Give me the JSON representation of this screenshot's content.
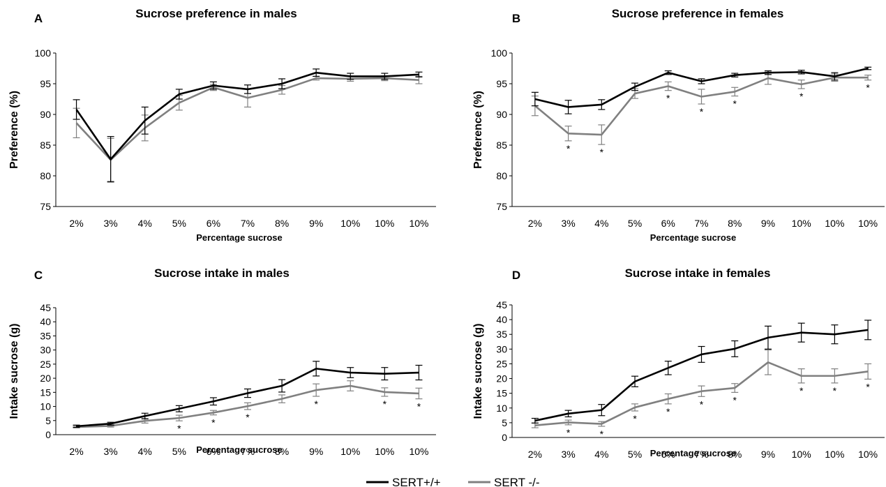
{
  "legend": {
    "series_a": "SERT+/+",
    "series_b": "SERT -/-"
  },
  "colors": {
    "sert_wt": "#000000",
    "sert_ko": "#808080"
  },
  "chart_data": [
    {
      "panel": "A",
      "type": "line",
      "title": "Sucrose preference in males",
      "xlabel": "Percentage sucrose",
      "ylabel": "Preference (%)",
      "categories": [
        "2%",
        "3%",
        "4%",
        "5%",
        "6%",
        "7%",
        "8%",
        "9%",
        "10%",
        "10%",
        "10%"
      ],
      "ylim": [
        75,
        100
      ],
      "yticks": [
        75,
        80,
        85,
        90,
        95,
        100
      ],
      "grid": false,
      "series": [
        {
          "name": "SERT+/+",
          "color": "#000000",
          "values": [
            90.8,
            82.7,
            89.0,
            93.3,
            94.7,
            94.1,
            95.0,
            96.8,
            96.2,
            96.2,
            96.5
          ],
          "errors": [
            1.6,
            3.7,
            2.2,
            0.8,
            0.6,
            0.7,
            0.8,
            0.6,
            0.5,
            0.5,
            0.4
          ],
          "significant": [
            false,
            false,
            false,
            false,
            false,
            false,
            false,
            false,
            false,
            false,
            false
          ]
        },
        {
          "name": "SERT -/-",
          "color": "#808080",
          "values": [
            88.6,
            82.6,
            87.8,
            91.9,
            94.4,
            92.7,
            94.0,
            95.9,
            95.8,
            95.9,
            95.6
          ],
          "errors": [
            2.4,
            3.5,
            2.1,
            1.2,
            0.5,
            1.5,
            0.7,
            0.3,
            0.4,
            0.4,
            0.6
          ],
          "significant": [
            false,
            false,
            false,
            false,
            false,
            false,
            false,
            false,
            false,
            false,
            false
          ]
        }
      ]
    },
    {
      "panel": "B",
      "type": "line",
      "title": "Sucrose preference in females",
      "xlabel": "Percentage sucrose",
      "ylabel": "Preference (%)",
      "categories": [
        "2%",
        "3%",
        "4%",
        "5%",
        "6%",
        "7%",
        "8%",
        "9%",
        "10%",
        "10%",
        "10%"
      ],
      "ylim": [
        75,
        100
      ],
      "yticks": [
        75,
        80,
        85,
        90,
        95,
        100
      ],
      "grid": false,
      "series": [
        {
          "name": "SERT+/+",
          "color": "#000000",
          "values": [
            92.5,
            91.2,
            91.6,
            94.5,
            96.8,
            95.4,
            96.4,
            96.8,
            96.9,
            96.2,
            97.5
          ],
          "errors": [
            1.1,
            1.1,
            0.8,
            0.6,
            0.3,
            0.4,
            0.3,
            0.3,
            0.3,
            0.6,
            0.2
          ],
          "significant": [
            false,
            false,
            false,
            false,
            false,
            false,
            false,
            false,
            false,
            false,
            false
          ]
        },
        {
          "name": "SERT -/-",
          "color": "#808080",
          "values": [
            91.4,
            86.9,
            86.7,
            93.4,
            94.6,
            92.9,
            93.7,
            95.9,
            94.9,
            96.0,
            96.0
          ],
          "errors": [
            1.6,
            1.2,
            1.6,
            0.8,
            0.7,
            1.2,
            0.7,
            1.0,
            0.7,
            0.6,
            0.4
          ],
          "significant": [
            false,
            true,
            true,
            false,
            true,
            true,
            true,
            false,
            true,
            false,
            true
          ]
        }
      ]
    },
    {
      "panel": "C",
      "type": "line",
      "title": "Sucrose intake in males",
      "xlabel": "Percentage sucrose",
      "ylabel": "Intake sucrose (g)",
      "categories": [
        "2%",
        "3%",
        "4%",
        "5%",
        "6%",
        "7%",
        "8%",
        "9%",
        "10%",
        "10%",
        "10%"
      ],
      "ylim": [
        0,
        45
      ],
      "yticks": [
        0,
        5,
        10,
        15,
        20,
        25,
        30,
        35,
        40,
        45
      ],
      "grid": false,
      "series": [
        {
          "name": "SERT+/+",
          "color": "#000000",
          "values": [
            3.0,
            3.9,
            6.6,
            9.2,
            11.8,
            14.7,
            17.3,
            23.4,
            22.0,
            21.6,
            22.0
          ],
          "errors": [
            0.4,
            0.5,
            1.0,
            1.1,
            1.3,
            1.5,
            2.2,
            2.6,
            1.8,
            2.2,
            2.6
          ],
          "significant": [
            false,
            false,
            false,
            false,
            false,
            false,
            false,
            false,
            false,
            false,
            false
          ]
        },
        {
          "name": "SERT -/-",
          "color": "#808080",
          "values": [
            2.7,
            3.1,
            4.9,
            5.9,
            7.8,
            10.1,
            12.7,
            15.8,
            17.3,
            15.1,
            14.6
          ],
          "errors": [
            0.3,
            0.4,
            0.8,
            1.0,
            0.8,
            1.2,
            1.4,
            2.2,
            1.8,
            1.5,
            1.9
          ],
          "significant": [
            false,
            false,
            false,
            true,
            true,
            true,
            false,
            true,
            false,
            true,
            true
          ]
        }
      ]
    },
    {
      "panel": "D",
      "type": "line",
      "title": "Sucrose intake in females",
      "xlabel": "Percentage sucrose",
      "ylabel": "Intake sucrose (g)",
      "categories": [
        "2%",
        "3%",
        "4%",
        "5%",
        "6%",
        "7%",
        "8%",
        "9%",
        "10%",
        "10%",
        "10%"
      ],
      "ylim": [
        0,
        45
      ],
      "yticks": [
        0,
        5,
        10,
        15,
        20,
        25,
        30,
        35,
        40,
        45
      ],
      "grid": false,
      "series": [
        {
          "name": "SERT+/+",
          "color": "#000000",
          "values": [
            5.7,
            8.1,
            9.3,
            19.0,
            23.6,
            28.2,
            30.1,
            33.9,
            35.6,
            35.0,
            36.5
          ],
          "errors": [
            0.8,
            1.1,
            1.9,
            1.8,
            2.3,
            2.7,
            2.7,
            3.9,
            3.2,
            3.2,
            3.3
          ],
          "significant": [
            false,
            false,
            false,
            false,
            false,
            false,
            false,
            false,
            false,
            false,
            false
          ]
        },
        {
          "name": "SERT -/-",
          "color": "#808080",
          "values": [
            4.1,
            5.1,
            4.6,
            10.2,
            13.1,
            15.7,
            16.8,
            25.5,
            20.9,
            20.9,
            22.4
          ],
          "errors": [
            0.8,
            0.8,
            0.8,
            1.2,
            1.7,
            1.8,
            1.5,
            4.2,
            2.4,
            2.4,
            2.6
          ],
          "significant": [
            false,
            true,
            true,
            true,
            true,
            true,
            true,
            false,
            true,
            true,
            true
          ]
        }
      ]
    }
  ]
}
